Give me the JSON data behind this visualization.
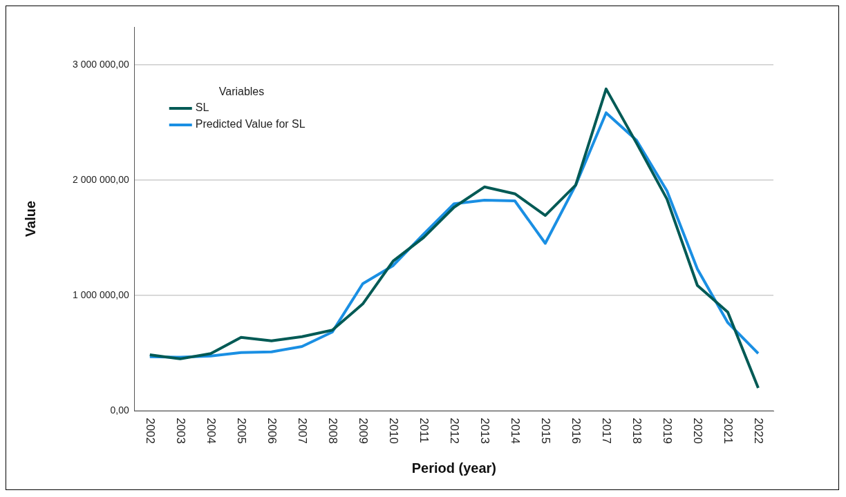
{
  "chart_data": {
    "type": "line",
    "xlabel": "Period (year)",
    "ylabel": "Value",
    "legend_title": "Variables",
    "categories": [
      "2002",
      "2003",
      "2004",
      "2005",
      "2006",
      "2007",
      "2008",
      "2009",
      "2010",
      "2011",
      "2012",
      "2013",
      "2014",
      "2015",
      "2016",
      "2017",
      "2018",
      "2019",
      "2020",
      "2021",
      "2022"
    ],
    "series": [
      {
        "name": "SL",
        "color": "#005a55",
        "values": [
          486000,
          451000,
          496000,
          637000,
          607000,
          643000,
          700000,
          927000,
          1300000,
          1503000,
          1766000,
          1942000,
          1883000,
          1695000,
          1958000,
          2792000,
          2322000,
          1837000,
          1088000,
          856000,
          198000
        ]
      },
      {
        "name": "Predicted Value for SL",
        "color": "#1a8fe3",
        "values": [
          469000,
          465000,
          475000,
          506000,
          512000,
          558000,
          684000,
          1103000,
          1260000,
          1533000,
          1796000,
          1827000,
          1821000,
          1453000,
          1958000,
          2585000,
          2347000,
          1908000,
          1230000,
          765000,
          498000
        ]
      }
    ],
    "ylim": [
      0,
      3330000
    ],
    "yticks": [
      {
        "value": 0,
        "label": "0,00"
      },
      {
        "value": 1000000,
        "label": "1 000 000,00"
      },
      {
        "value": 2000000,
        "label": "2 000 000,00"
      },
      {
        "value": 3000000,
        "label": "3 000 000,00"
      }
    ],
    "grid": "y",
    "legend": "top left",
    "marker": "none",
    "line_style": "solid"
  }
}
